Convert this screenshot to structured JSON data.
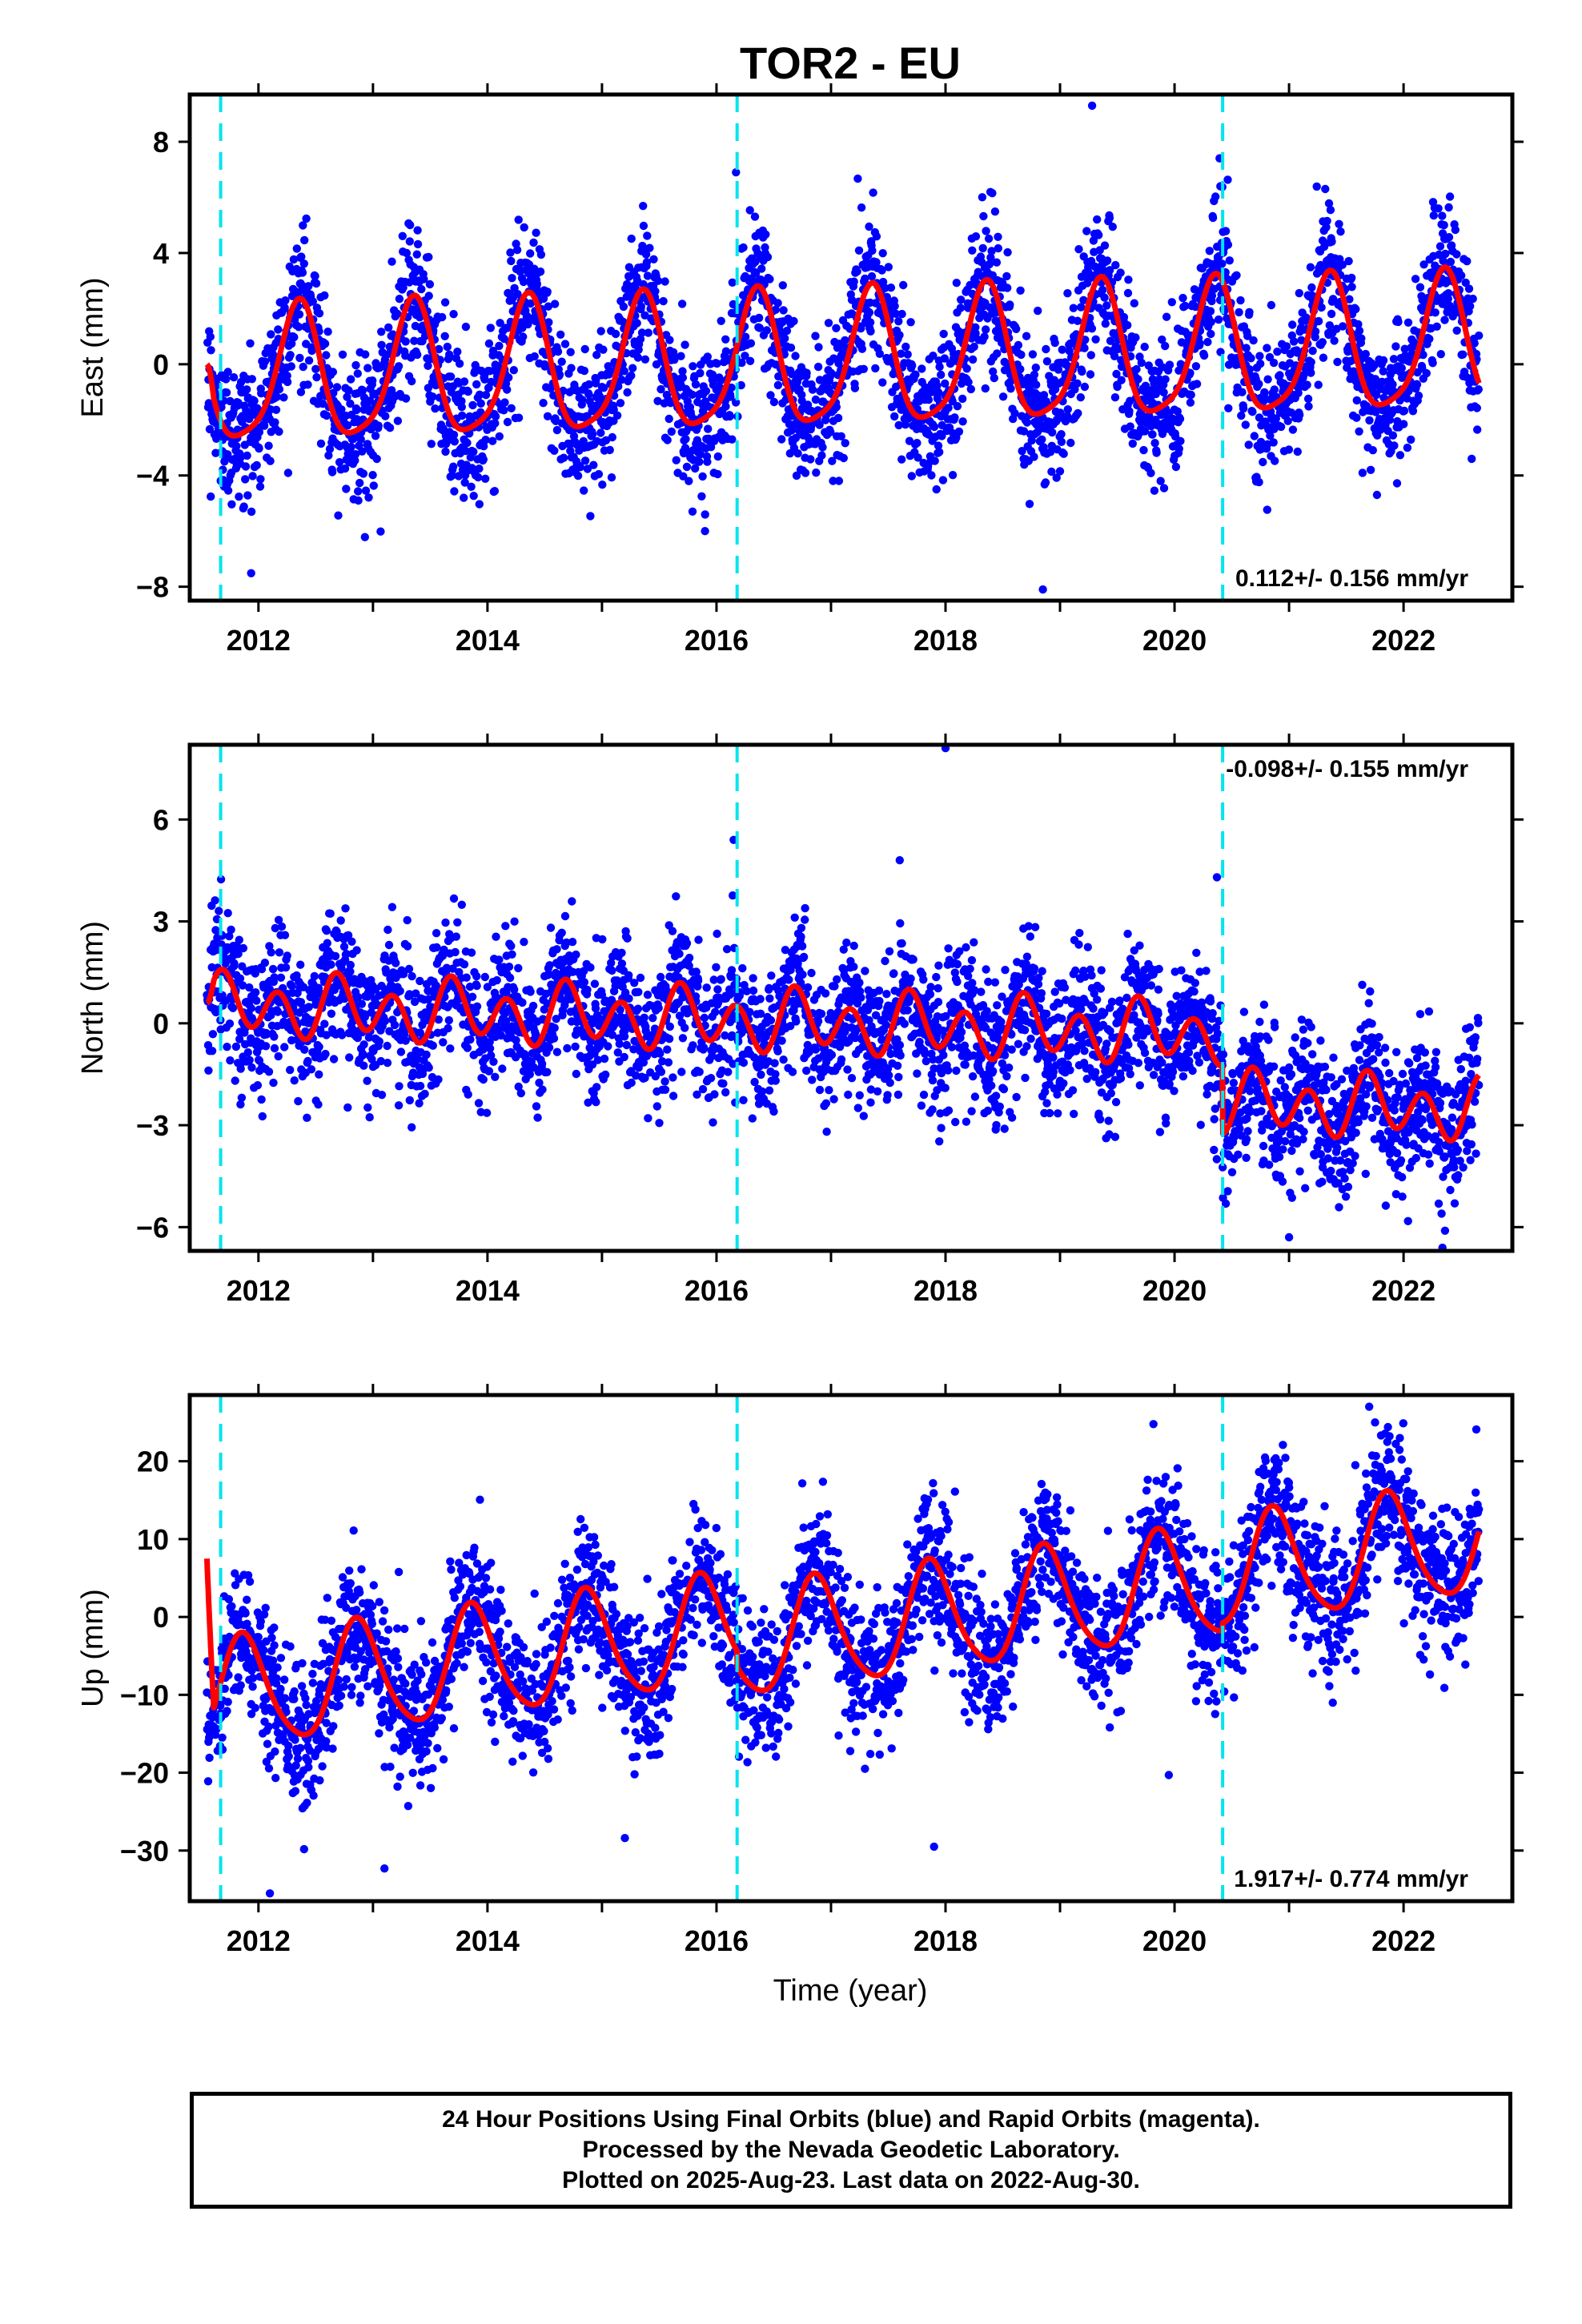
{
  "chart_data": {
    "title": "TOR2 - EU",
    "type": "scatter",
    "xlabel": "Time (year)",
    "xlim": [
      2011.4,
      2022.95
    ],
    "xticks": [
      2012,
      2014,
      2016,
      2018,
      2020,
      2022
    ],
    "steps": [
      2011.67,
      2016.18,
      2020.42
    ],
    "colors": {
      "points": "#0000ff",
      "model": "#ff0000",
      "steps": "#00e5ee"
    },
    "panels": [
      {
        "ylabel": "East (mm)",
        "ylim": [
          -8.5,
          9.7
        ],
        "yticks": [
          -8,
          -4,
          0,
          4,
          8
        ],
        "rate_text": "0.112+/- 0.156 mm/yr",
        "rate_position": "bottom-right",
        "model": {
          "trend": 0.112,
          "amp1": 2.4,
          "phase1": 0.1,
          "amp2": 0.5,
          "phase2": 0.25,
          "offsets": [
            0,
            0,
            0
          ],
          "noise": 1.3,
          "start": 0
        },
        "outliers": [
          [
            2019.28,
            9.3
          ],
          [
            2018.85,
            -8.1
          ],
          [
            2016.17,
            6.9
          ],
          [
            2015.9,
            -6.0
          ],
          [
            2020.4,
            6.4
          ]
        ]
      },
      {
        "ylabel": "North (mm)",
        "ylim": [
          -6.7,
          8.2
        ],
        "yticks": [
          -6,
          -3,
          0,
          3,
          6
        ],
        "rate_text": "-0.098+/- 0.155 mm/yr",
        "rate_position": "top-right",
        "model": {
          "trend": -0.098,
          "amp1": 0.35,
          "phase1": 0.5,
          "amp2": 0.75,
          "phase2": 0.05,
          "offsets": [
            0,
            0,
            -2.0
          ],
          "noise": 1.0,
          "start": 0.6
        },
        "outliers": [
          [
            2018.0,
            8.1
          ],
          [
            2016.15,
            5.4
          ],
          [
            2020.37,
            4.3
          ],
          [
            2017.6,
            4.8
          ],
          [
            2021.0,
            -6.3
          ]
        ]
      },
      {
        "ylabel": "Up (mm)",
        "ylim": [
          -36.5,
          28.5
        ],
        "yticks": [
          -30,
          -20,
          -10,
          0,
          10,
          20
        ],
        "rate_text": "1.917+/- 0.774 mm/yr",
        "rate_position": "bottom-right",
        "model": {
          "trend": 1.917,
          "amp1": 7.0,
          "phase1": 0.62,
          "amp2": 1.0,
          "phase2": 0.2,
          "offsets": [
            0,
            -2.0,
            1.0
          ],
          "noise": 4.5,
          "start": 7.5
        },
        "outliers": [
          [
            2012.1,
            -35.5
          ],
          [
            2013.1,
            -32.3
          ],
          [
            2017.9,
            -29.5
          ],
          [
            2015.2,
            -28.4
          ],
          [
            2021.7,
            27.0
          ],
          [
            2019.95,
            -20.3
          ]
        ]
      }
    ]
  },
  "footer": {
    "line1": "24 Hour Positions Using Final Orbits (blue) and Rapid Orbits (magenta).",
    "line2": "Processed by the Nevada Geodetic Laboratory.",
    "line3": "Plotted on 2025-Aug-23. Last data on 2022-Aug-30."
  }
}
